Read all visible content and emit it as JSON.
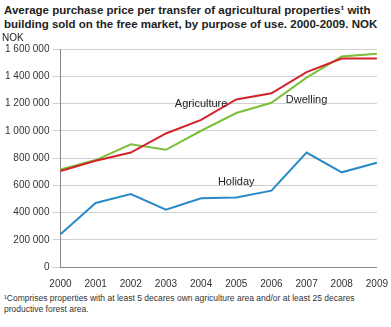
{
  "chart_data": {
    "type": "line",
    "title": "Average purchase price per transfer of agricultural properties¹ with building sold on the free market, by purpose of use. 2000-2009. NOK",
    "y_label": "NOK",
    "footnote": "¹Comprises properties with at least 5 decares own agriculture area and/or at least 25 decares productive forest area.",
    "categories": [
      "2000",
      "2001",
      "2002",
      "2003",
      "2004",
      "2005",
      "2006",
      "2007",
      "2008",
      "2009"
    ],
    "series": [
      {
        "name": "Agriculture",
        "color": "#d2232a",
        "values": [
          705000,
          780000,
          840000,
          980000,
          1080000,
          1230000,
          1275000,
          1430000,
          1530000,
          1530000
        ]
      },
      {
        "name": "Dwelling",
        "color": "#7cbf3a",
        "values": [
          715000,
          785000,
          900000,
          860000,
          1000000,
          1130000,
          1205000,
          1390000,
          1545000,
          1565000
        ]
      },
      {
        "name": "Holiday",
        "color": "#2a8ac8",
        "values": [
          240000,
          470000,
          535000,
          420000,
          505000,
          510000,
          560000,
          840000,
          695000,
          765000
        ]
      }
    ],
    "ylim": [
      0,
      1600000
    ],
    "yticks": [
      0,
      {
        "value": 200000,
        "label": "200 000"
      },
      {
        "value": 400000,
        "label": "400 000"
      },
      {
        "value": 600000,
        "label": "600 000"
      },
      {
        "value": 800000,
        "label": "800 000"
      },
      {
        "value": 1000000,
        "label": "1 000 000"
      },
      {
        "value": 1200000,
        "label": "1 200 000"
      },
      {
        "value": 1400000,
        "label": "1 400 000"
      },
      {
        "value": 1600000,
        "label": "1 600 000"
      }
    ],
    "grid": true
  }
}
